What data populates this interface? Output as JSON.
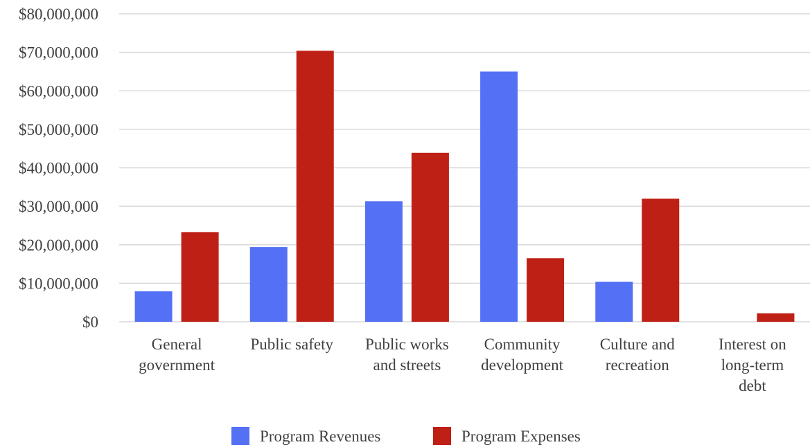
{
  "chart_data": {
    "type": "bar",
    "title": "",
    "xlabel": "",
    "ylabel": "",
    "categories": [
      [
        "General",
        "government"
      ],
      [
        "Public safety"
      ],
      [
        "Public works",
        "and streets"
      ],
      [
        "Community",
        "development"
      ],
      [
        "Culture and",
        "recreation"
      ],
      [
        "Interest on",
        "long-term",
        "debt"
      ]
    ],
    "series": [
      {
        "name": "Program Revenues",
        "color": "#5470f5",
        "values": [
          7900000,
          19400000,
          31300000,
          65000000,
          10400000,
          0
        ]
      },
      {
        "name": "Program Expenses",
        "color": "#bf2016",
        "values": [
          23300000,
          70400000,
          43900000,
          16500000,
          32000000,
          2200000
        ]
      }
    ],
    "ylim": [
      0,
      80000000
    ],
    "yticks": [
      0,
      10000000,
      20000000,
      30000000,
      40000000,
      50000000,
      60000000,
      70000000,
      80000000
    ],
    "ytick_labels": [
      "$0",
      "$10,000,000",
      "$20,000,000",
      "$30,000,000",
      "$40,000,000",
      "$50,000,000",
      "$60,000,000",
      "$70,000,000",
      "$80,000,000"
    ],
    "grid": true,
    "legend_position": "bottom-center"
  }
}
